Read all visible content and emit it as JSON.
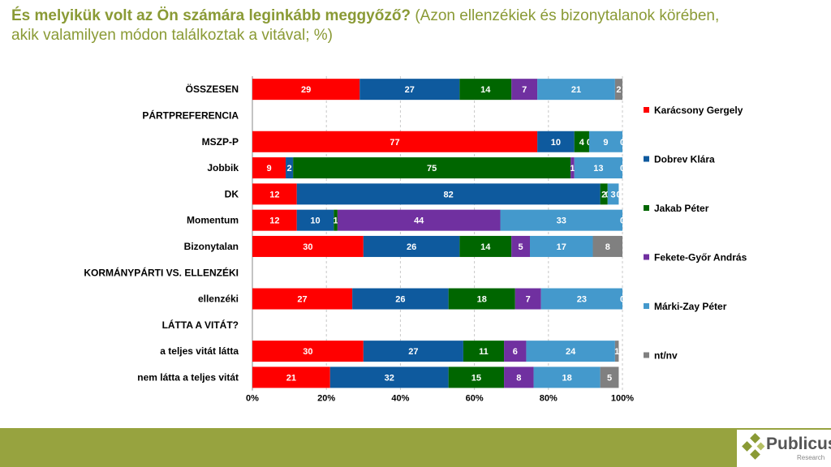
{
  "title": {
    "main": "És melyikük volt az Ön számára leginkább meggyőző?",
    "sub": " (Azon ellenzékiek és bizonytalanok körében, akik valamilyen módon találkoztak a vitával; %)"
  },
  "logo": {
    "name": "Publicus",
    "sub": "Research"
  },
  "chart_data": {
    "type": "stacked-bar-horizontal",
    "xlim": [
      0,
      100
    ],
    "xticks": [
      "0%",
      "20%",
      "40%",
      "60%",
      "80%",
      "100%"
    ],
    "grid": true,
    "legend_position": "right",
    "series": [
      {
        "name": "Karácsony Gergely",
        "color": "#ff0000"
      },
      {
        "name": "Dobrev Klára",
        "color": "#0e5a9e"
      },
      {
        "name": "Jakab Péter",
        "color": "#006600"
      },
      {
        "name": "Fekete-Győr András",
        "color": "#7030a0"
      },
      {
        "name": "Márki-Zay Péter",
        "color": "#4499cc"
      },
      {
        "name": "nt/nv",
        "color": "#808080"
      }
    ],
    "rows": [
      {
        "label": "ÖSSZESEN",
        "values": [
          29,
          27,
          14,
          7,
          21,
          2
        ]
      },
      {
        "label": "PÁRTPREFERENCIA",
        "header": true
      },
      {
        "label": "MSZP-P",
        "values": [
          77,
          10,
          4,
          0,
          9,
          0
        ]
      },
      {
        "label": "Jobbik",
        "values": [
          9,
          2,
          75,
          1,
          13,
          0
        ]
      },
      {
        "label": "DK",
        "values": [
          12,
          82,
          2,
          0,
          3,
          0
        ]
      },
      {
        "label": "Momentum",
        "values": [
          12,
          10,
          1,
          44,
          33,
          0
        ]
      },
      {
        "label": "Bizonytalan",
        "values": [
          30,
          26,
          14,
          5,
          17,
          8
        ]
      },
      {
        "label": "KORMÁNYPÁRTI VS. ELLENZÉKI",
        "header": true
      },
      {
        "label": "ellenzéki",
        "values": [
          27,
          26,
          18,
          7,
          23,
          0
        ]
      },
      {
        "label": "LÁTTA A VITÁT?",
        "header": true
      },
      {
        "label": "a teljes vitát látta",
        "values": [
          30,
          27,
          11,
          6,
          24,
          1
        ]
      },
      {
        "label": "nem látta a teljes vitát",
        "values": [
          21,
          32,
          15,
          8,
          18,
          5
        ]
      }
    ]
  }
}
